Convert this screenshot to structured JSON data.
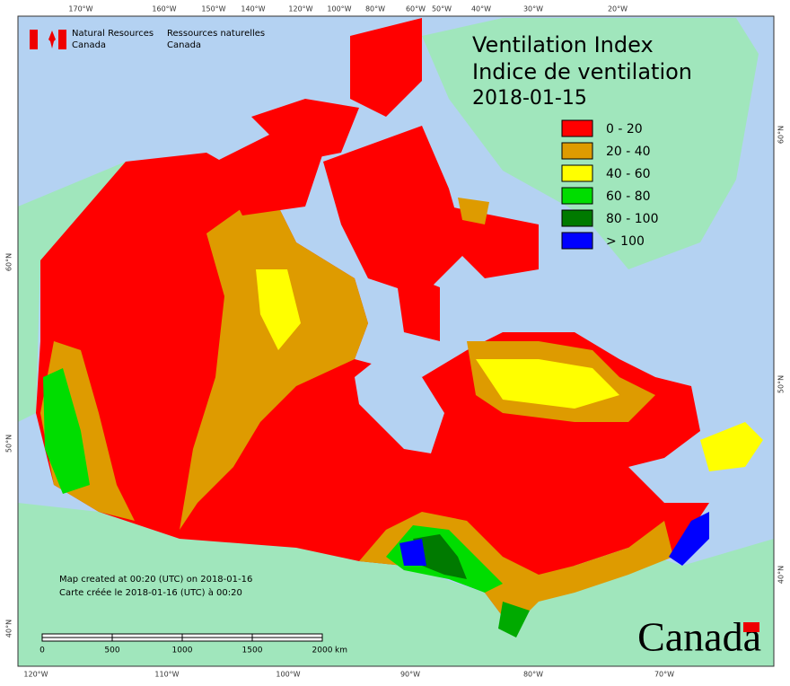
{
  "header": {
    "agency_en_1": "Natural Resources",
    "agency_en_2": "Canada",
    "agency_fr_1": "Ressources naturelles",
    "agency_fr_2": "Canada"
  },
  "map": {
    "title_en": "Ventilation Index",
    "title_fr": "Indice de ventilation",
    "date": "2018-01-15",
    "legend": [
      {
        "label": "0 - 20",
        "color": "#ff0000"
      },
      {
        "label": "20 - 40",
        "color": "#de9b00"
      },
      {
        "label": "40 - 60",
        "color": "#ffff00"
      },
      {
        "label": "60 - 80",
        "color": "#00dd00"
      },
      {
        "label": "80 - 100",
        "color": "#007a00"
      },
      {
        "label": "> 100",
        "color": "#0000ff"
      }
    ],
    "top_labels": [
      "170°W",
      "160°W",
      "150°W",
      "140°W",
      "120°W",
      "100°W",
      "80°W",
      "60°W",
      "50°W",
      "40°W",
      "30°W",
      "20°W"
    ],
    "bottom_labels": [
      "120°W",
      "110°W",
      "100°W",
      "90°W",
      "80°W",
      "70°W"
    ],
    "left_labels": [
      "60°N",
      "50°N",
      "40°N"
    ],
    "right_labels": [
      "60°N",
      "50°N",
      "40°N"
    ],
    "scale_labels": [
      "0",
      "500",
      "1000",
      "1500",
      "2000"
    ],
    "scale_unit": "km",
    "created_en": "Map created at 00:20 (UTC) on 2018-01-16",
    "created_fr": "Carte créée le 2018-01-16 (UTC) à 00:20",
    "wordmark": "Canada"
  }
}
